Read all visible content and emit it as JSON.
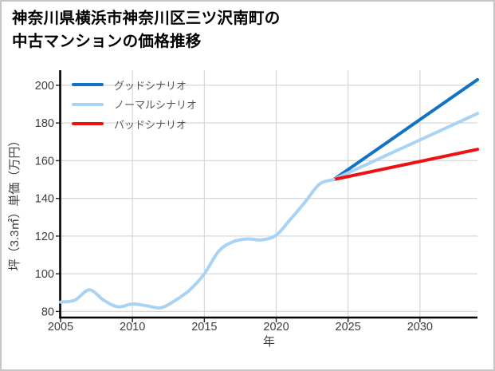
{
  "title": {
    "line1": "神奈川県横浜市神奈川区三ツ沢南町の",
    "line2": "中古マンションの価格推移"
  },
  "legend": {
    "items": [
      {
        "key": "good",
        "label": "グッドシナリオ",
        "color": "#1273c4"
      },
      {
        "key": "normal",
        "label": "ノーマルシナリオ",
        "color": "#a8d3f5"
      },
      {
        "key": "bad",
        "label": "バッドシナリオ",
        "color": "#ee1111"
      }
    ]
  },
  "colors": {
    "background": "#ffffff",
    "border": "#c6c6c6",
    "grid": "#d7d7d7",
    "axis": "#000000",
    "tick_label": "#3d3d3d",
    "axis_label": "#3d3d3d",
    "legend_text": "#555555",
    "title_text": "#000000"
  },
  "chart_data": {
    "type": "line",
    "title": "神奈川県横浜市神奈川区三ツ沢南町の中古マンションの価格推移",
    "xlabel": "年",
    "ylabel": "坪（3.3㎡）単価（万円）",
    "xlim": [
      2005,
      2034
    ],
    "ylim": [
      77,
      208
    ],
    "x_ticks": [
      2005,
      2010,
      2015,
      2020,
      2025,
      2030
    ],
    "y_ticks": [
      80,
      100,
      120,
      140,
      160,
      180,
      200
    ],
    "grid": true,
    "legend_position": "top-left",
    "series": [
      {
        "key": "good",
        "name": "グッドシナリオ",
        "color": "#1273c4",
        "smooth": false,
        "x": [
          2024,
          2034
        ],
        "values": [
          150,
          203
        ]
      },
      {
        "key": "normal",
        "name": "ノーマルシナリオ",
        "color": "#a8d3f5",
        "smooth": false,
        "x": [
          2024,
          2034
        ],
        "values": [
          150,
          185
        ]
      },
      {
        "key": "bad",
        "name": "バッドシナリオ",
        "color": "#ee1111",
        "smooth": false,
        "x": [
          2024,
          2034
        ],
        "values": [
          150,
          166
        ]
      },
      {
        "key": "historical",
        "name": "historical",
        "color": "#a8d3f5",
        "smooth": true,
        "x": [
          2005,
          2006,
          2007,
          2008,
          2009,
          2010,
          2011,
          2012,
          2013,
          2014,
          2015,
          2016,
          2017,
          2018,
          2019,
          2020,
          2021,
          2022,
          2023,
          2024
        ],
        "values": [
          85,
          86,
          91.5,
          86,
          82.5,
          84,
          83,
          82,
          86,
          91.5,
          100,
          112,
          117,
          118.5,
          118,
          120.5,
          129,
          138,
          147.5,
          150
        ]
      }
    ]
  }
}
